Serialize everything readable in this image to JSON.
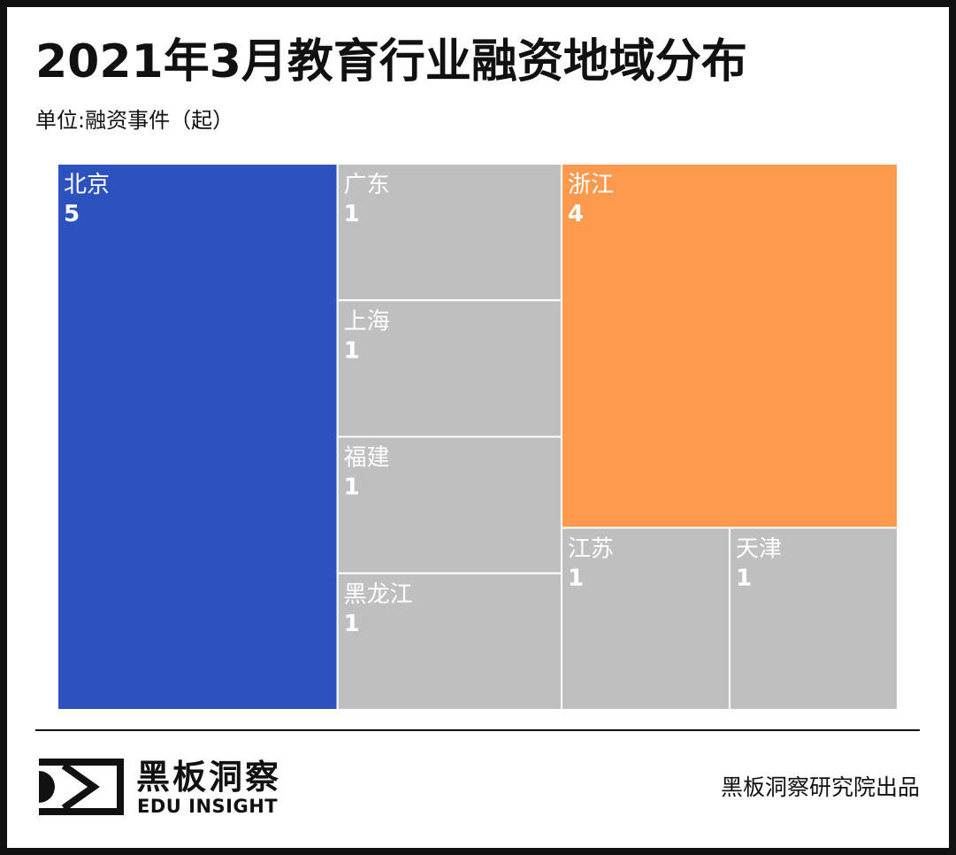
{
  "chart_data": {
    "type": "treemap",
    "title": "2021年3月教育行业融资地域分布",
    "subtitle": "单位:融资事件（起）",
    "categories": [
      "北京",
      "广东",
      "上海",
      "福建",
      "黑龙江",
      "浙江",
      "江苏",
      "天津"
    ],
    "values": [
      5,
      1,
      1,
      1,
      1,
      4,
      1,
      1
    ],
    "colors": [
      "#2c52be",
      "#bfbfbf",
      "#bfbfbf",
      "#bfbfbf",
      "#bfbfbf",
      "#fd9a4d",
      "#bfbfbf",
      "#bfbfbf"
    ],
    "label_color": "#ffffff",
    "legend": "none"
  },
  "footer": {
    "logo_icon": "eye-frame-icon",
    "brand_name": "黑板洞察",
    "brand_tagline": "EDU INSIGHT",
    "credit": "黑板洞察研究院出品"
  },
  "colors": {
    "frame": "#111111",
    "text": "#111111",
    "background": "#ffffff"
  }
}
